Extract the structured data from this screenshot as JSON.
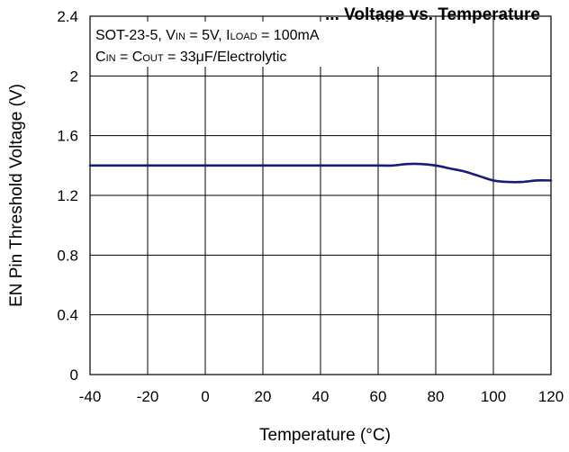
{
  "chart_data": {
    "type": "line",
    "title": "... Voltage vs. Temperature",
    "xlabel": "Temperature (°C)",
    "ylabel": "EN Pin Threshold Voltage (V)",
    "xlim": [
      -40,
      120
    ],
    "ylim": [
      0,
      2.4
    ],
    "xticks": [
      -40,
      -20,
      0,
      20,
      40,
      60,
      80,
      100,
      120
    ],
    "yticks": [
      0,
      0.4,
      0.8,
      1.2,
      1.6,
      2,
      2.4
    ],
    "ytick_labels": [
      "0",
      "0.4",
      "0.8",
      "1.2",
      "1.6",
      "2",
      "2.4"
    ],
    "grid": true,
    "conditions": {
      "line1": {
        "prefix": "SOT-23-5, V",
        "sub1": "IN",
        "mid": " = 5V, I",
        "sub2": "LOAD",
        "suffix": " = 100mA"
      },
      "line2": {
        "prefix": "C",
        "sub1": "IN",
        "mid": " = C",
        "sub2": "OUT",
        "suffix": " = 33μF/Electrolytic"
      }
    },
    "series": [
      {
        "color": "#1a1a7a",
        "x": [
          -40,
          -20,
          0,
          20,
          40,
          60,
          65,
          70,
          75,
          80,
          85,
          90,
          95,
          100,
          105,
          110,
          115,
          120
        ],
        "y": [
          1.4,
          1.4,
          1.4,
          1.4,
          1.4,
          1.4,
          1.4,
          1.41,
          1.41,
          1.4,
          1.38,
          1.36,
          1.33,
          1.3,
          1.29,
          1.29,
          1.3,
          1.3
        ]
      }
    ]
  }
}
